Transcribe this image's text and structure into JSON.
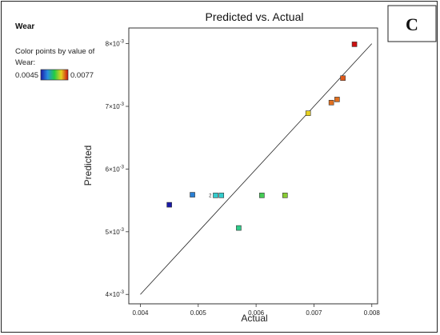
{
  "panel_label": "C",
  "legend": {
    "title": "Wear",
    "description_line1": "Color points by value of",
    "description_line2": "Wear:",
    "min_label": "0.0045",
    "max_label": "0.0077",
    "min_color": "#1a1aa8",
    "max_color": "#cc1111"
  },
  "chart_data": {
    "type": "scatter",
    "title": "Predicted vs. Actual",
    "xlabel": "Actual",
    "ylabel": "Predicted",
    "xlim": [
      0.0038,
      0.0081
    ],
    "ylim": [
      0.00385,
      0.00825
    ],
    "x_ticks": [
      0.004,
      0.005,
      0.006,
      0.007,
      0.008
    ],
    "x_tick_labels": [
      "0.004",
      "0.005",
      "0.006",
      "0.007",
      "0.008"
    ],
    "y_ticks": [
      0.004,
      0.005,
      0.006,
      0.007,
      0.008
    ],
    "y_tick_labels": [
      {
        "mantissa": "4",
        "exponent": "-3"
      },
      {
        "mantissa": "5",
        "exponent": "-3"
      },
      {
        "mantissa": "6",
        "exponent": "-3"
      },
      {
        "mantissa": "7",
        "exponent": "-3"
      },
      {
        "mantissa": "8",
        "exponent": "-3"
      }
    ],
    "reference_line": {
      "from": [
        0.004,
        0.004
      ],
      "to": [
        0.008,
        0.008
      ]
    },
    "color_scale": {
      "min": 0.0045,
      "max": 0.0077
    },
    "points": [
      {
        "x": 0.0045,
        "y": 0.00543,
        "color": "#1a1aa8"
      },
      {
        "x": 0.0049,
        "y": 0.00559,
        "color": "#2a7fd4"
      },
      {
        "x": 0.0053,
        "y": 0.00558,
        "color": "#33cccc",
        "label": "2"
      },
      {
        "x": 0.0054,
        "y": 0.00558,
        "color": "#33cccc"
      },
      {
        "x": 0.0057,
        "y": 0.00506,
        "color": "#2ecc8a"
      },
      {
        "x": 0.0061,
        "y": 0.00558,
        "color": "#44cc55"
      },
      {
        "x": 0.0065,
        "y": 0.00558,
        "color": "#88cc33"
      },
      {
        "x": 0.0069,
        "y": 0.00689,
        "color": "#e6d020"
      },
      {
        "x": 0.0073,
        "y": 0.00706,
        "color": "#e07020"
      },
      {
        "x": 0.0074,
        "y": 0.00711,
        "color": "#e07020"
      },
      {
        "x": 0.0075,
        "y": 0.00745,
        "color": "#e05a1a"
      },
      {
        "x": 0.0077,
        "y": 0.00799,
        "color": "#cc1111"
      }
    ]
  }
}
